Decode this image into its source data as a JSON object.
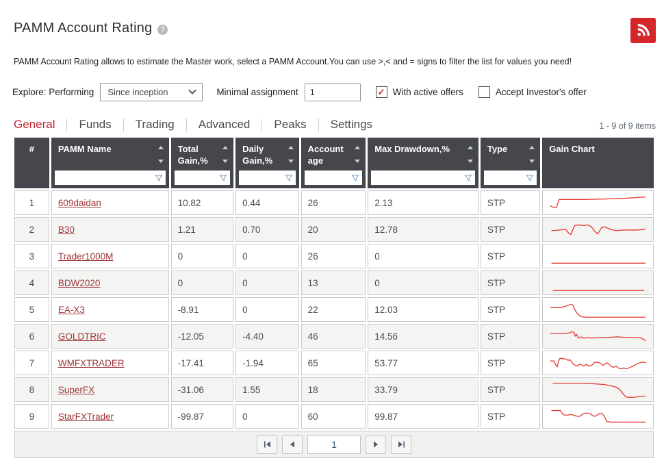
{
  "header": {
    "title": "PAMM Account Rating",
    "help_icon": "?",
    "description": "PAMM Account Rating allows to estimate the Master work, select a PAMM Account.You can use >,< and = signs to filter the list for values you need!"
  },
  "filters": {
    "explore_label": "Explore: Performing",
    "period_selected": "Since inception",
    "minimal_assignment_label": "Minimal assignment",
    "minimal_assignment_value": "1",
    "with_active_offers": {
      "label": "With active offers",
      "checked": true
    },
    "accept_investors_offer": {
      "label": "Accept Investor's offer",
      "checked": false
    }
  },
  "tabs": [
    {
      "label": "General",
      "active": true
    },
    {
      "label": "Funds",
      "active": false
    },
    {
      "label": "Trading",
      "active": false
    },
    {
      "label": "Advanced",
      "active": false
    },
    {
      "label": "Peaks",
      "active": false
    },
    {
      "label": "Settings",
      "active": false
    }
  ],
  "items_count": "1 - 9 of 9 items",
  "icons": {
    "check": "✓"
  },
  "colors": {
    "accent_red": "#d5262c",
    "tab_active": "#c32231",
    "header_bg": "#45474c",
    "sparkline": "#e23a32",
    "link": "#9e3439",
    "filter_funnel": "#7ba7cc"
  },
  "table": {
    "columns": [
      {
        "label": "#",
        "sortable": false,
        "filterable": false
      },
      {
        "label": "PAMM Name",
        "sortable": true,
        "filterable": true
      },
      {
        "label": "Total Gain,%",
        "sortable": true,
        "filterable": true
      },
      {
        "label": "Daily Gain,%",
        "sortable": true,
        "filterable": true
      },
      {
        "label": "Account age",
        "sortable": true,
        "filterable": true
      },
      {
        "label": "Max Drawdown,%",
        "sortable": true,
        "filterable": true
      },
      {
        "label": "Type",
        "sortable": true,
        "filterable": true
      },
      {
        "label": "Gain Chart",
        "sortable": false,
        "filterable": false
      }
    ],
    "rows": [
      {
        "num": "1",
        "name": "609daidan",
        "total_gain": "10.82",
        "daily_gain": "0.44",
        "account_age": "26",
        "max_drawdown": "2.13",
        "type": "STP",
        "sparkline": [
          [
            6,
            21
          ],
          [
            11,
            23
          ],
          [
            15,
            24
          ],
          [
            17,
            20
          ],
          [
            20,
            11
          ],
          [
            60,
            11
          ],
          [
            100,
            10
          ],
          [
            125,
            9
          ],
          [
            140,
            8
          ],
          [
            154,
            7
          ]
        ]
      },
      {
        "num": "2",
        "name": "B30",
        "total_gain": "1.21",
        "daily_gain": "0.70",
        "account_age": "20",
        "max_drawdown": "12.78",
        "type": "STP",
        "sparkline": [
          [
            8,
            18
          ],
          [
            20,
            17
          ],
          [
            30,
            16
          ],
          [
            34,
            21
          ],
          [
            38,
            24
          ],
          [
            44,
            10
          ],
          [
            50,
            9
          ],
          [
            58,
            10
          ],
          [
            64,
            9
          ],
          [
            70,
            12
          ],
          [
            76,
            20
          ],
          [
            80,
            23
          ],
          [
            86,
            13
          ],
          [
            90,
            12
          ],
          [
            95,
            14
          ],
          [
            100,
            16
          ],
          [
            108,
            18
          ],
          [
            120,
            17
          ],
          [
            140,
            17
          ],
          [
            154,
            16
          ]
        ]
      },
      {
        "num": "3",
        "name": "Trader1000M",
        "total_gain": "0",
        "daily_gain": "0",
        "account_age": "26",
        "max_drawdown": "0",
        "type": "STP",
        "sparkline": [
          [
            8,
            27
          ],
          [
            154,
            27
          ]
        ]
      },
      {
        "num": "4",
        "name": "BDW2020",
        "total_gain": "0",
        "daily_gain": "0",
        "account_age": "13",
        "max_drawdown": "0",
        "type": "STP",
        "sparkline": [
          [
            10,
            28
          ],
          [
            152,
            28
          ]
        ]
      },
      {
        "num": "5",
        "name": "EA-X3",
        "total_gain": "-8.91",
        "daily_gain": "0",
        "account_age": "22",
        "max_drawdown": "12.03",
        "type": "STP",
        "sparkline": [
          [
            6,
            13
          ],
          [
            22,
            13
          ],
          [
            30,
            11
          ],
          [
            38,
            8
          ],
          [
            41,
            9
          ],
          [
            44,
            15
          ],
          [
            47,
            21
          ],
          [
            52,
            26
          ],
          [
            58,
            28
          ],
          [
            70,
            28
          ],
          [
            154,
            28
          ]
        ]
      },
      {
        "num": "6",
        "name": "GOLDTRIC",
        "total_gain": "-12.05",
        "daily_gain": "-4.40",
        "account_age": "46",
        "max_drawdown": "14.56",
        "type": "STP",
        "sparkline": [
          [
            6,
            12
          ],
          [
            25,
            12
          ],
          [
            35,
            11
          ],
          [
            40,
            9
          ],
          [
            43,
            10
          ],
          [
            45,
            16
          ],
          [
            47,
            13
          ],
          [
            50,
            19
          ],
          [
            54,
            17
          ],
          [
            58,
            19
          ],
          [
            64,
            18
          ],
          [
            70,
            19
          ],
          [
            80,
            18
          ],
          [
            95,
            18
          ],
          [
            110,
            17
          ],
          [
            125,
            18
          ],
          [
            140,
            18
          ],
          [
            148,
            19
          ],
          [
            154,
            23
          ]
        ]
      },
      {
        "num": "7",
        "name": "WMFXTRADER",
        "total_gain": "-17.41",
        "daily_gain": "-1.94",
        "account_age": "65",
        "max_drawdown": "53.77",
        "type": "STP",
        "sparkline": [
          [
            6,
            13
          ],
          [
            12,
            13
          ],
          [
            15,
            20
          ],
          [
            17,
            22
          ],
          [
            19,
            14
          ],
          [
            21,
            9
          ],
          [
            25,
            9
          ],
          [
            30,
            10
          ],
          [
            34,
            12
          ],
          [
            37,
            11
          ],
          [
            41,
            17
          ],
          [
            45,
            20
          ],
          [
            48,
            21
          ],
          [
            52,
            18
          ],
          [
            55,
            19
          ],
          [
            58,
            21
          ],
          [
            62,
            18
          ],
          [
            66,
            21
          ],
          [
            70,
            20
          ],
          [
            75,
            15
          ],
          [
            80,
            15
          ],
          [
            85,
            17
          ],
          [
            88,
            20
          ],
          [
            92,
            17
          ],
          [
            95,
            16
          ],
          [
            100,
            21
          ],
          [
            104,
            23
          ],
          [
            108,
            21
          ],
          [
            112,
            24
          ],
          [
            116,
            25
          ],
          [
            120,
            24
          ],
          [
            125,
            25
          ],
          [
            130,
            23
          ],
          [
            136,
            20
          ],
          [
            142,
            17
          ],
          [
            147,
            15
          ],
          [
            152,
            15
          ],
          [
            155,
            16
          ]
        ]
      },
      {
        "num": "8",
        "name": "SuperFX",
        "total_gain": "-31.06",
        "daily_gain": "1.55",
        "account_age": "18",
        "max_drawdown": "33.79",
        "type": "STP",
        "sparkline": [
          [
            10,
            6
          ],
          [
            60,
            6
          ],
          [
            75,
            7
          ],
          [
            90,
            8
          ],
          [
            100,
            10
          ],
          [
            108,
            12
          ],
          [
            113,
            15
          ],
          [
            118,
            21
          ],
          [
            122,
            26
          ],
          [
            126,
            28
          ],
          [
            134,
            28
          ],
          [
            144,
            27
          ],
          [
            154,
            26
          ]
        ]
      },
      {
        "num": "9",
        "name": "StarFXTrader",
        "total_gain": "-99.87",
        "daily_gain": "0",
        "account_age": "60",
        "max_drawdown": "99.87",
        "type": "STP",
        "sparkline": [
          [
            8,
            7
          ],
          [
            22,
            7
          ],
          [
            25,
            12
          ],
          [
            28,
            14
          ],
          [
            34,
            14
          ],
          [
            38,
            13
          ],
          [
            42,
            14
          ],
          [
            48,
            16
          ],
          [
            52,
            16
          ],
          [
            56,
            13
          ],
          [
            60,
            11
          ],
          [
            64,
            11
          ],
          [
            68,
            12
          ],
          [
            72,
            15
          ],
          [
            76,
            16
          ],
          [
            80,
            13
          ],
          [
            84,
            11
          ],
          [
            87,
            12
          ],
          [
            90,
            16
          ],
          [
            94,
            24
          ],
          [
            100,
            25
          ],
          [
            154,
            25
          ]
        ]
      }
    ]
  },
  "pagination": {
    "page": "1"
  }
}
